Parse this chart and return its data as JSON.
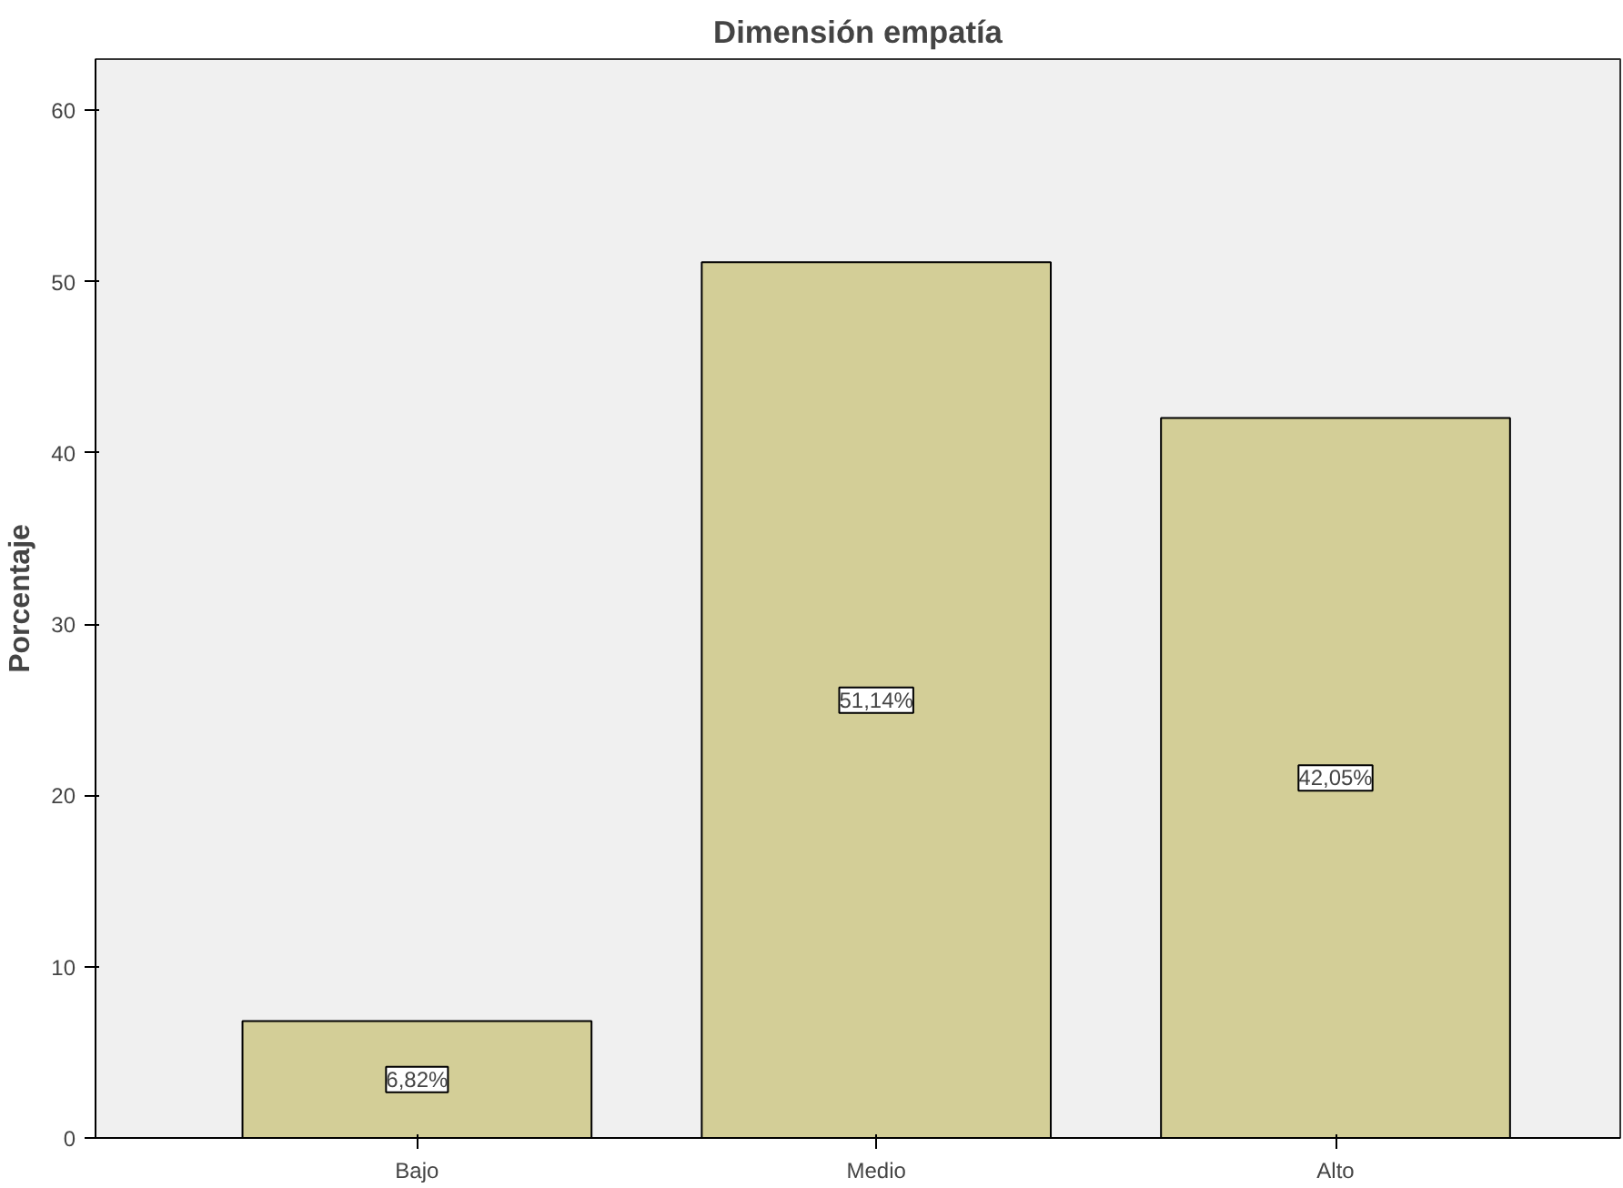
{
  "chart_data": {
    "type": "bar",
    "title": "Dimensión empatía",
    "ylabel": "Porcentaje",
    "categories": [
      "Bajo",
      "Medio",
      "Alto"
    ],
    "values": [
      6.82,
      51.14,
      42.05
    ],
    "value_labels": [
      "6,82%",
      "51,14%",
      "42,05%"
    ],
    "color": "#d3ce97",
    "ylim": [
      0,
      63
    ],
    "yticks": [
      0,
      10,
      20,
      30,
      40,
      50,
      60
    ],
    "grid": false
  }
}
